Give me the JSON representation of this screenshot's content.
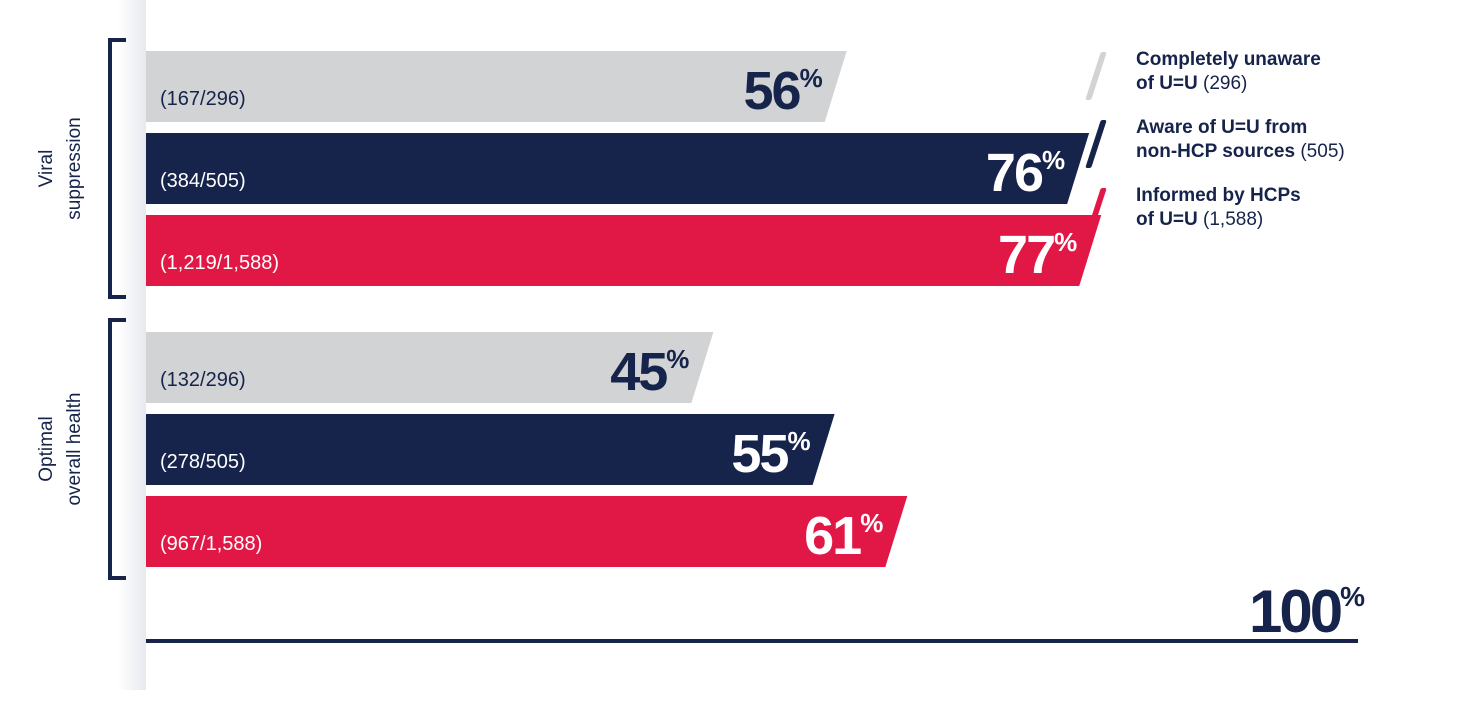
{
  "chart_data": {
    "type": "bar",
    "orientation": "horizontal",
    "xlim": [
      0,
      100
    ],
    "axis_end_label": {
      "value": "100",
      "unit": "%"
    },
    "groups": [
      {
        "label": "Viral suppression",
        "label_lines": [
          "Viral",
          "suppression"
        ],
        "bars": [
          {
            "series": 0,
            "value": 56,
            "count_label": "(167/296)"
          },
          {
            "series": 1,
            "value": 76,
            "count_label": "(384/505)"
          },
          {
            "series": 2,
            "value": 77,
            "count_label": "(1,219/1,588)"
          }
        ]
      },
      {
        "label": "Optimal overall health",
        "label_lines": [
          "Optimal",
          "overall health"
        ],
        "bars": [
          {
            "series": 0,
            "value": 45,
            "count_label": "(132/296)"
          },
          {
            "series": 1,
            "value": 55,
            "count_label": "(278/505)"
          },
          {
            "series": 2,
            "value": 61,
            "count_label": "(967/1,588)"
          }
        ]
      }
    ],
    "series": [
      {
        "name": "Completely unaware of U=U",
        "color": "#d1d3d4",
        "value_text_color": "#16234a"
      },
      {
        "name": "Aware of U=U from non-HCP sources",
        "color": "#16234a",
        "value_text_color": "#ffffff"
      },
      {
        "name": "Informed by HCPs of U=U",
        "color": "#e11846",
        "value_text_color": "#ffffff"
      }
    ],
    "bar_label_colors": [
      "#16234a",
      "#ffffff",
      "#ffffff"
    ],
    "axis_color": "#16234a",
    "bracket_color": "#16234a",
    "legend_position": "top-right"
  },
  "legend": {
    "items": [
      {
        "line1": "Completely unaware",
        "line2_bold": "of U=U",
        "count": "(296)",
        "color": "#d1d3d4"
      },
      {
        "line1": "Aware of U=U from",
        "line2_bold": "non-HCP sources",
        "count": "(505)",
        "color": "#16234a"
      },
      {
        "line1": "Informed by HCPs",
        "line2_bold": "of U=U",
        "count": "(1,588)",
        "color": "#e11846"
      }
    ]
  }
}
